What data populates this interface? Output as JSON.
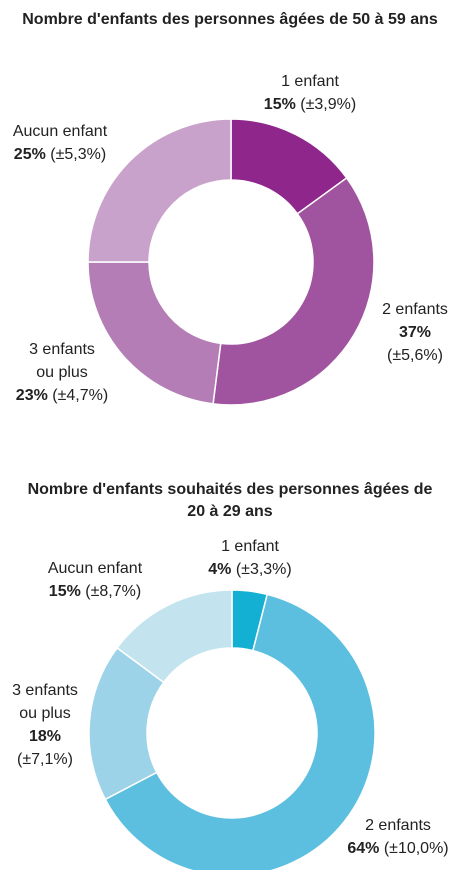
{
  "chart_data": [
    {
      "type": "pie",
      "donut": true,
      "title": "Nombre d'enfants des personnes âgées de 50 à 59 ans",
      "categories": [
        "1 enfant",
        "2 enfants",
        "3 enfants ou plus",
        "Aucun enfant"
      ],
      "values": [
        15,
        37,
        23,
        25
      ],
      "value_labels": [
        "15%",
        "37%",
        "23%",
        "25%"
      ],
      "error_labels": [
        "(±3,9%)",
        "(±5,6%)",
        "(±4,7%)",
        "(±5,3%)"
      ],
      "colors": [
        "#8e268c",
        "#a0549f",
        "#b47db6",
        "#c9a2cb"
      ]
    },
    {
      "type": "pie",
      "donut": true,
      "title": "Nombre d'enfants souhaités des personnes âgées de 20 à 29 ans",
      "categories": [
        "1 enfant",
        "2 enfants",
        "3 enfants ou plus",
        "Aucun enfant"
      ],
      "values": [
        4,
        64,
        18,
        15
      ],
      "value_labels": [
        "4%",
        "64%",
        "18%",
        "15%"
      ],
      "error_labels": [
        "(±3,3%)",
        "(±10,0%)",
        "(±7,1%)",
        "(±8,7%)"
      ],
      "colors": [
        "#14b0d4",
        "#5cbfdf",
        "#9dd3e8",
        "#c3e3ef"
      ]
    }
  ]
}
